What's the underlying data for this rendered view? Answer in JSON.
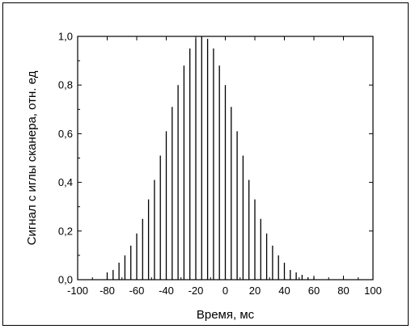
{
  "chart_data": {
    "type": "bar",
    "xlabel": "Время, мс",
    "ylabel": "Сигнал с иглы сканера, отн. ед",
    "xlim": [
      -100,
      100
    ],
    "ylim": [
      0,
      1.0
    ],
    "x_ticks": [
      -100,
      -80,
      -60,
      -40,
      -20,
      0,
      20,
      40,
      60,
      80,
      100
    ],
    "y_ticks": [
      0.0,
      0.2,
      0.4,
      0.6,
      0.8,
      1.0
    ],
    "x_tick_labels": [
      "-100",
      "-80",
      "-60",
      "-40",
      "-20",
      "0",
      "20",
      "40",
      "60",
      "80",
      "100"
    ],
    "y_tick_labels": [
      "0,0",
      "0,2",
      "0,4",
      "0,6",
      "0,8",
      "1,0"
    ],
    "grid": false,
    "x": [
      -80,
      -76,
      -72,
      -68,
      -64,
      -60,
      -56,
      -52,
      -48,
      -44,
      -40,
      -36,
      -32,
      -28,
      -24,
      -20,
      -16,
      -12,
      -8,
      -4,
      0,
      4,
      8,
      12,
      16,
      20,
      24,
      28,
      32,
      36,
      40,
      44,
      48,
      52,
      56,
      60,
      64,
      68,
      72,
      76,
      80
    ],
    "values": [
      0.03,
      0.04,
      0.07,
      0.1,
      0.14,
      0.19,
      0.25,
      0.33,
      0.41,
      0.51,
      0.61,
      0.71,
      0.8,
      0.88,
      0.95,
      0.99,
      1.0,
      0.99,
      0.95,
      0.88,
      0.8,
      0.71,
      0.61,
      0.51,
      0.41,
      0.33,
      0.25,
      0.19,
      0.14,
      0.1,
      0.07,
      0.04,
      0.03,
      0.02,
      0.01,
      0.01,
      0.0,
      0.0,
      0.0,
      0.0,
      0.0
    ]
  }
}
